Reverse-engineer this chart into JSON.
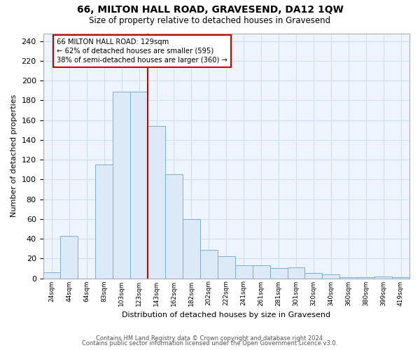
{
  "title": "66, MILTON HALL ROAD, GRAVESEND, DA12 1QW",
  "subtitle": "Size of property relative to detached houses in Gravesend",
  "xlabel": "Distribution of detached houses by size in Gravesend",
  "ylabel": "Number of detached properties",
  "bar_labels": [
    "24sqm",
    "44sqm",
    "64sqm",
    "83sqm",
    "103sqm",
    "123sqm",
    "143sqm",
    "162sqm",
    "182sqm",
    "202sqm",
    "222sqm",
    "241sqm",
    "261sqm",
    "281sqm",
    "301sqm",
    "320sqm",
    "340sqm",
    "360sqm",
    "380sqm",
    "399sqm",
    "419sqm"
  ],
  "bar_heights": [
    6,
    43,
    0,
    115,
    189,
    189,
    154,
    105,
    60,
    29,
    22,
    13,
    13,
    10,
    11,
    5,
    4,
    1,
    1,
    2,
    1
  ],
  "bar_color": "#dce9f7",
  "bar_edge_color": "#7aafd4",
  "vline_x_index": 5.5,
  "vline_color": "#cc0000",
  "annotation_title": "66 MILTON HALL ROAD: 129sqm",
  "annotation_line1": "← 62% of detached houses are smaller (595)",
  "annotation_line2": "38% of semi-detached houses are larger (360) →",
  "annotation_box_color": "#ffffff",
  "annotation_box_edge": "#cc0000",
  "ylim": [
    0,
    248
  ],
  "yticks": [
    0,
    20,
    40,
    60,
    80,
    100,
    120,
    140,
    160,
    180,
    200,
    220,
    240
  ],
  "footer1": "Contains HM Land Registry data © Crown copyright and database right 2024.",
  "footer2": "Contains public sector information licensed under the Open Government Licence v3.0.",
  "bg_color": "#ffffff",
  "grid_color": "#d0dff0",
  "plot_bg_color": "#eef4fb"
}
